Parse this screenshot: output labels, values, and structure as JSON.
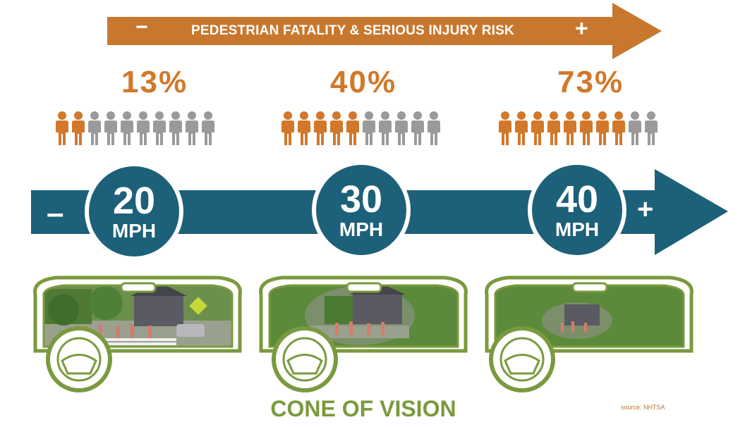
{
  "banner": {
    "minus": "−",
    "text": "PEDESTRIAN FATALITY & SERIOUS INJURY RISK",
    "plus": "+",
    "color": "#c8782e"
  },
  "risk_groups": [
    {
      "percent_label": "13%",
      "highlighted": 2,
      "total": 10
    },
    {
      "percent_label": "40%",
      "highlighted": 5,
      "total": 10
    },
    {
      "percent_label": "73%",
      "highlighted": 8,
      "total": 10
    }
  ],
  "speed_arrow": {
    "minus": "–",
    "plus": "+",
    "color": "#1d6079"
  },
  "speeds": [
    {
      "value": "20",
      "unit": "MPH"
    },
    {
      "value": "30",
      "unit": "MPH"
    },
    {
      "value": "40",
      "unit": "MPH"
    }
  ],
  "vision": {
    "title": "CONE OF VISION",
    "source": "source: NHTSA",
    "frame_color": "#7a9a3e"
  },
  "colors": {
    "highlight_person": "#d2782a",
    "person": "#9a9a9a",
    "foliage": "#5b8a3a"
  }
}
